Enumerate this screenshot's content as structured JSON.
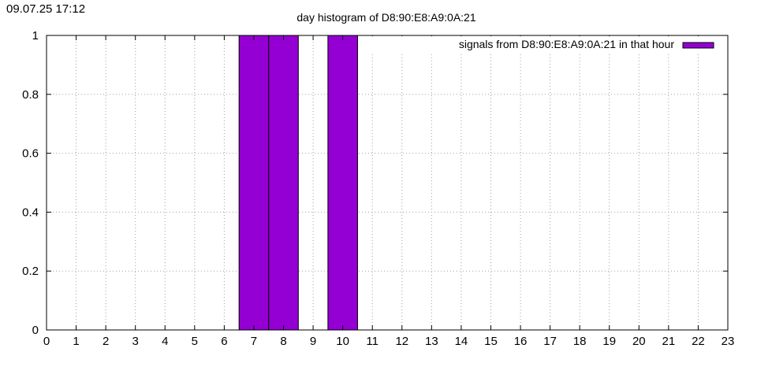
{
  "timestamp": "09.07.25 17:12",
  "chart_data": {
    "type": "bar",
    "title": "day histogram of D8:90:E8:A9:0A:21",
    "xlabel": "",
    "ylabel": "",
    "x": [
      0,
      1,
      2,
      3,
      4,
      5,
      6,
      7,
      8,
      9,
      10,
      11,
      12,
      13,
      14,
      15,
      16,
      17,
      18,
      19,
      20,
      21,
      22,
      23
    ],
    "xlim": [
      0,
      23
    ],
    "ylim": [
      0,
      1
    ],
    "yticks": [
      "0",
      "0.2",
      "0.4",
      "0.6",
      "0.8",
      "1"
    ],
    "xticks": [
      "0",
      "1",
      "2",
      "3",
      "4",
      "5",
      "6",
      "7",
      "8",
      "9",
      "10",
      "11",
      "12",
      "13",
      "14",
      "15",
      "16",
      "17",
      "18",
      "19",
      "20",
      "21",
      "22",
      "23"
    ],
    "grid": true,
    "legend_position": "top-right",
    "series": [
      {
        "name": "signals from D8:90:E8:A9:0A:21 in that hour",
        "color": "#9400d3",
        "values": [
          0,
          0,
          0,
          0,
          0,
          0,
          0,
          1,
          1,
          0,
          1,
          0,
          0,
          0,
          0,
          0,
          0,
          0,
          0,
          0,
          0,
          0,
          0,
          0
        ]
      }
    ]
  }
}
